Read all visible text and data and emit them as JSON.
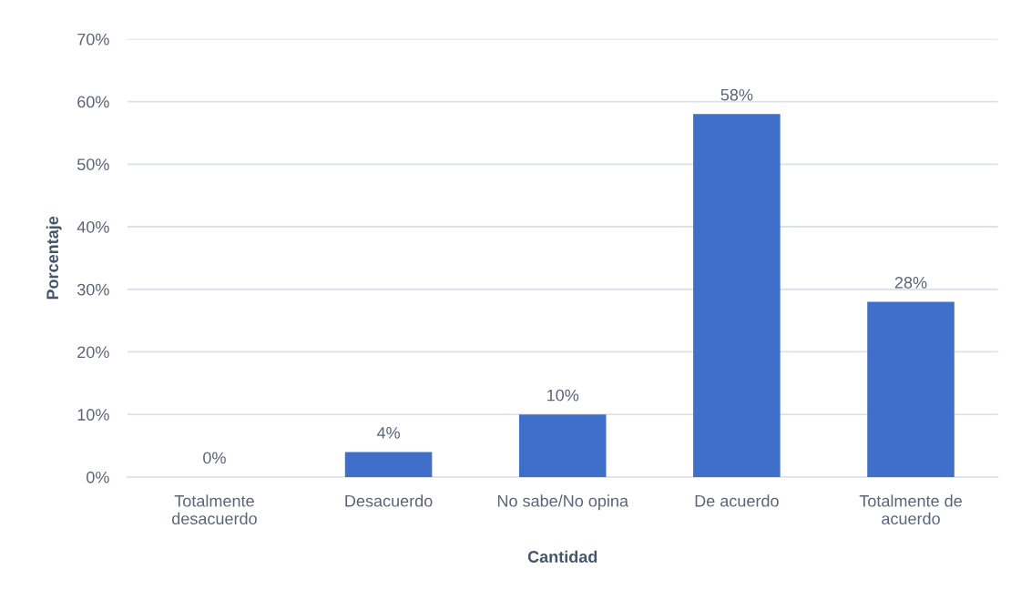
{
  "chart_data": {
    "type": "bar",
    "categories": [
      "Totalmente desacuerdo",
      "Desacuerdo",
      "No sabe/No opina",
      "De acuerdo",
      "Totalmente de acuerdo"
    ],
    "values": [
      0,
      4,
      10,
      58,
      28
    ],
    "value_labels": [
      "0%",
      "4%",
      "10%",
      "58%",
      "28%"
    ],
    "color": "#3f6fc8",
    "xlabel": "Cantidad",
    "ylabel": "Porcentaje",
    "ylim": [
      0,
      70
    ],
    "yticks": [
      {
        "value": 0,
        "label": "0%"
      },
      {
        "value": 10,
        "label": "10%"
      },
      {
        "value": 20,
        "label": "20%"
      },
      {
        "value": 30,
        "label": "30%"
      },
      {
        "value": 40,
        "label": "40%"
      },
      {
        "value": 50,
        "label": "50%"
      },
      {
        "value": 60,
        "label": "60%"
      },
      {
        "value": 70,
        "label": "70%"
      }
    ],
    "grid": "y",
    "legend": false
  }
}
